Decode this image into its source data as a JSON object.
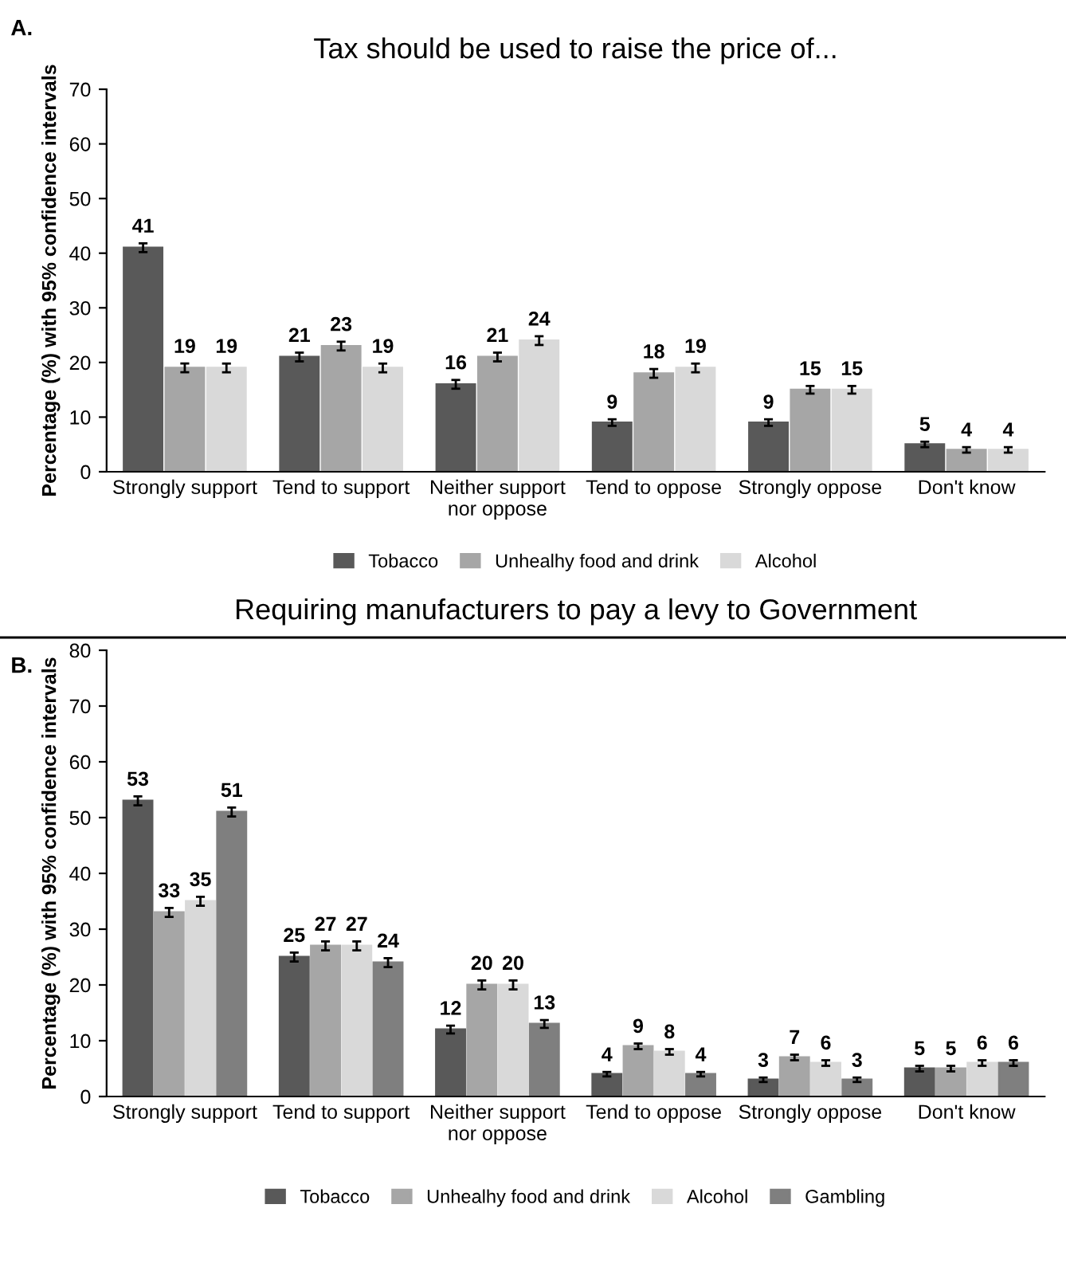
{
  "chart_data": [
    {
      "type": "bar",
      "title": "Tax should be used to raise the price of...",
      "ylabel": "Percentage (%) with 95% confidence intervals",
      "annotations": [
        "A."
      ],
      "categories": [
        "Strongly support",
        "Tend to support",
        "Neither support\nnor oppose",
        "Tend to oppose",
        "Strongly oppose",
        "Don't know"
      ],
      "series": [
        {
          "name": "Tobacco",
          "color": "#595959",
          "values": [
            41,
            21,
            16,
            9,
            9,
            5
          ],
          "errors": [
            0.8,
            0.8,
            0.8,
            0.6,
            0.6,
            0.5
          ]
        },
        {
          "name": "Unhealhy food and drink",
          "color": "#a6a6a6",
          "values": [
            19,
            23,
            21,
            18,
            15,
            4
          ],
          "errors": [
            0.8,
            0.8,
            0.8,
            0.8,
            0.7,
            0.5
          ]
        },
        {
          "name": "Alcohol",
          "color": "#d9d9d9",
          "values": [
            19,
            19,
            24,
            19,
            15,
            4
          ],
          "errors": [
            0.8,
            0.8,
            0.8,
            0.8,
            0.7,
            0.5
          ]
        }
      ],
      "ylim": [
        0,
        70
      ],
      "yticks": [
        0,
        10,
        20,
        30,
        40,
        50,
        60,
        70
      ],
      "data_labels": true,
      "legend": "bottom",
      "grid": false
    },
    {
      "type": "bar",
      "title": "Requiring manufacturers to pay a levy to Government",
      "ylabel": "Percentage (%) with 95% confidence intervals",
      "annotations": [
        "B."
      ],
      "categories": [
        "Strongly support",
        "Tend to support",
        "Neither support\nnor oppose",
        "Tend to oppose",
        "Strongly oppose",
        "Don't know"
      ],
      "series": [
        {
          "name": "Tobacco",
          "color": "#595959",
          "values": [
            53,
            25,
            12,
            4,
            3,
            5
          ],
          "errors": [
            0.8,
            0.8,
            0.7,
            0.4,
            0.4,
            0.5
          ]
        },
        {
          "name": "Unhealhy food and drink",
          "color": "#a6a6a6",
          "values": [
            33,
            27,
            20,
            9,
            7,
            5
          ],
          "errors": [
            0.8,
            0.8,
            0.8,
            0.5,
            0.5,
            0.5
          ]
        },
        {
          "name": "Alcohol",
          "color": "#d9d9d9",
          "values": [
            35,
            27,
            20,
            8,
            6,
            6
          ],
          "errors": [
            0.8,
            0.8,
            0.8,
            0.5,
            0.5,
            0.5
          ]
        },
        {
          "name": "Gambling",
          "color": "#7f7f7f",
          "values": [
            51,
            24,
            13,
            4,
            3,
            6
          ],
          "errors": [
            0.8,
            0.8,
            0.7,
            0.4,
            0.4,
            0.5
          ]
        }
      ],
      "ylim": [
        0,
        80
      ],
      "yticks": [
        0,
        10,
        20,
        30,
        40,
        50,
        60,
        70,
        80
      ],
      "data_labels": true,
      "legend": "bottom",
      "grid": false
    }
  ]
}
